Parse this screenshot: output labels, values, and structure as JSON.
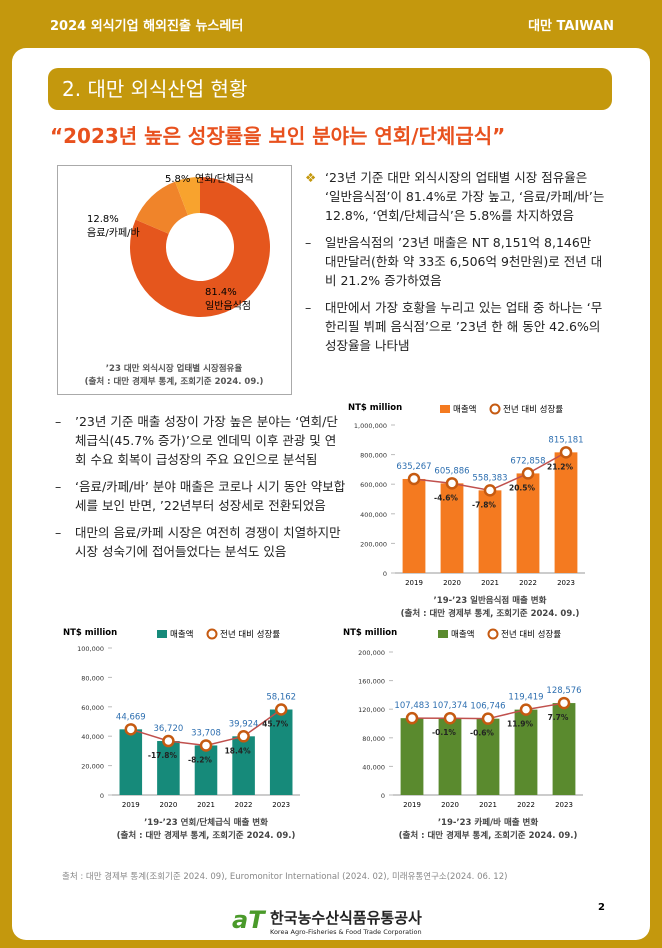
{
  "header": {
    "title": "2024 외식기업 해외진출 뉴스레터",
    "country": "대만 TAIWAN"
  },
  "section_title": "2. 대만 외식산업 현황",
  "headline": "“2023년 높은 성장률을 보인 분야는 연회/단체급식”",
  "bullets_right": [
    "‘23년 기준 대만 외식시장의 업태별 시장 점유율은 ‘일반음식점’이 81.4%로 가장 높고, ‘음료/카페/바’는 12.8%, ‘연회/단체급식’은 5.8%를 차지하였음",
    "일반음식점의 ’23년 매출은 NT 8,151억 8,146만 대만달러(한화 약 33조 6,506억 9천만원)로 전년 대비 21.2% 증가하였음",
    "대만에서 가장 호황을 누리고 있는 업태 중 하나는 ‘무한리필 뷔페 음식점’으로 ’23년 한 해 동안 42.6%의 성장율을 나타냄"
  ],
  "bullets_left": [
    "’23년 기준 매출 성장이 가장 높은 분야는 ‘연회/단체급식(45.7% 증가)’으로 엔데믹 이후 관광 및 연회 수요 회복이 급성장의 주요 요인으로 분석됨",
    "‘음료/카페/바’ 분야 매출은 코로나 시기 동안 약보합세를 보인 반면, ’22년부터 성장세로 전환되었음",
    "대만의 음료/카페 시장은 여전히 경쟁이 치열하지만 시장 성숙기에 접어들었다는 분석도 있음"
  ],
  "chart_data": [
    {
      "type": "pie",
      "categories": [
        "일반음식점",
        "음료/카페/바",
        "연회/단체급식"
      ],
      "values": [
        81.4,
        12.8,
        5.8
      ],
      "value_labels": [
        "81.4%",
        "12.8%",
        "5.8%"
      ],
      "colors": [
        "#e5561d",
        "#f0842a",
        "#f8a32e"
      ],
      "caption": "’23 대만 외식시장 업태별 시장점유율",
      "source": "(출처 : 대만 경제부 통계, 조회기준 2024. 09.)"
    },
    {
      "type": "combo",
      "y_label": "NT$ million",
      "categories": [
        "2019",
        "2020",
        "2021",
        "2022",
        "2023"
      ],
      "ylim": [
        0,
        1000000
      ],
      "yticks": [
        0,
        {
          "value": 200000,
          "label": "200,000"
        },
        {
          "value": 400000,
          "label": "400,000"
        },
        {
          "value": 600000,
          "label": "600,000"
        },
        {
          "value": 800000,
          "label": "800,000"
        },
        {
          "value": 1000000,
          "label": "1,000,000"
        }
      ],
      "series": [
        {
          "name": "매출액",
          "color": "#f47a20",
          "values": [
            635267,
            605886,
            558383,
            672858,
            815181
          ],
          "value_labels": [
            "635,267",
            "605,886",
            "558,383",
            "672,858",
            "815,181"
          ]
        },
        {
          "name": "전년 대비 성장률",
          "color": "#c55a11",
          "values": [
            null,
            -4.6,
            -7.8,
            20.5,
            21.2
          ],
          "value_labels": [
            null,
            "-4.6%",
            "-7.8%",
            "20.5%",
            "21.2%"
          ]
        }
      ],
      "caption": "’19-’23 일반음식점 매출 변화",
      "source": "(출처 : 대만 경제부 통계, 조회기준 2024. 09.)"
    },
    {
      "type": "combo",
      "y_label": "NT$ million",
      "categories": [
        "2019",
        "2020",
        "2021",
        "2022",
        "2023"
      ],
      "ylim": [
        0,
        100000
      ],
      "yticks": [
        0,
        {
          "value": 20000,
          "label": "20,000"
        },
        {
          "value": 40000,
          "label": "40,000"
        },
        {
          "value": 60000,
          "label": "60,000"
        },
        {
          "value": 80000,
          "label": "80,000"
        },
        {
          "value": 100000,
          "label": "100,000"
        }
      ],
      "series": [
        {
          "name": "매출액",
          "color": "#168a7a",
          "values": [
            44669,
            36720,
            33708,
            39924,
            58162
          ],
          "value_labels": [
            "44,669",
            "36,720",
            "33,708",
            "39,924",
            "58,162"
          ]
        },
        {
          "name": "전년 대비 성장률",
          "color": "#c55a11",
          "values": [
            null,
            -17.8,
            -8.2,
            18.4,
            45.7
          ],
          "value_labels": [
            null,
            "-17.8%",
            "-8.2%",
            "18.4%",
            "45.7%"
          ]
        }
      ],
      "caption": "’19-’23 연회/단체급식 매출 변화",
      "source": "(출처 : 대만 경제부 통계, 조회기준 2024. 09.)"
    },
    {
      "type": "combo",
      "y_label": "NT$ million",
      "categories": [
        "2019",
        "2020",
        "2021",
        "2022",
        "2023"
      ],
      "ylim": [
        0,
        200000
      ],
      "yticks": [
        0,
        {
          "value": 40000,
          "label": "40,000"
        },
        {
          "value": 80000,
          "label": "80,000"
        },
        {
          "value": 120000,
          "label": "120,000"
        },
        {
          "value": 160000,
          "label": "160,000"
        },
        {
          "value": 200000,
          "label": "200,000"
        }
      ],
      "series": [
        {
          "name": "매출액",
          "color": "#5a8a2e",
          "values": [
            107483,
            107374,
            106746,
            119419,
            128576
          ],
          "value_labels": [
            "107,483",
            "107,374",
            "106,746",
            "119,419",
            "128,576"
          ]
        },
        {
          "name": "전년 대비 성장률",
          "color": "#c55a11",
          "values": [
            null,
            -0.1,
            -0.6,
            11.9,
            7.7
          ],
          "value_labels": [
            null,
            "-0.1%",
            "-0.6%",
            "11.9%",
            "7.7%"
          ]
        }
      ],
      "caption": "’19-’23 카페/바 매출 변화",
      "source": "(출처 : 대만 경제부 통계, 조회기준 2024. 09.)"
    }
  ],
  "source": "출처 : 대만 경제부 통계(조회기준 2024. 09), Euromonitor International (2024. 02), 미래유통연구소(2024. 06. 12)",
  "footer": {
    "page": "2",
    "logo_mark": "aT",
    "org": "한국농수산식품유통공사",
    "org_en": "Korea Agro-Fisheries & Food Trade Corporation"
  }
}
